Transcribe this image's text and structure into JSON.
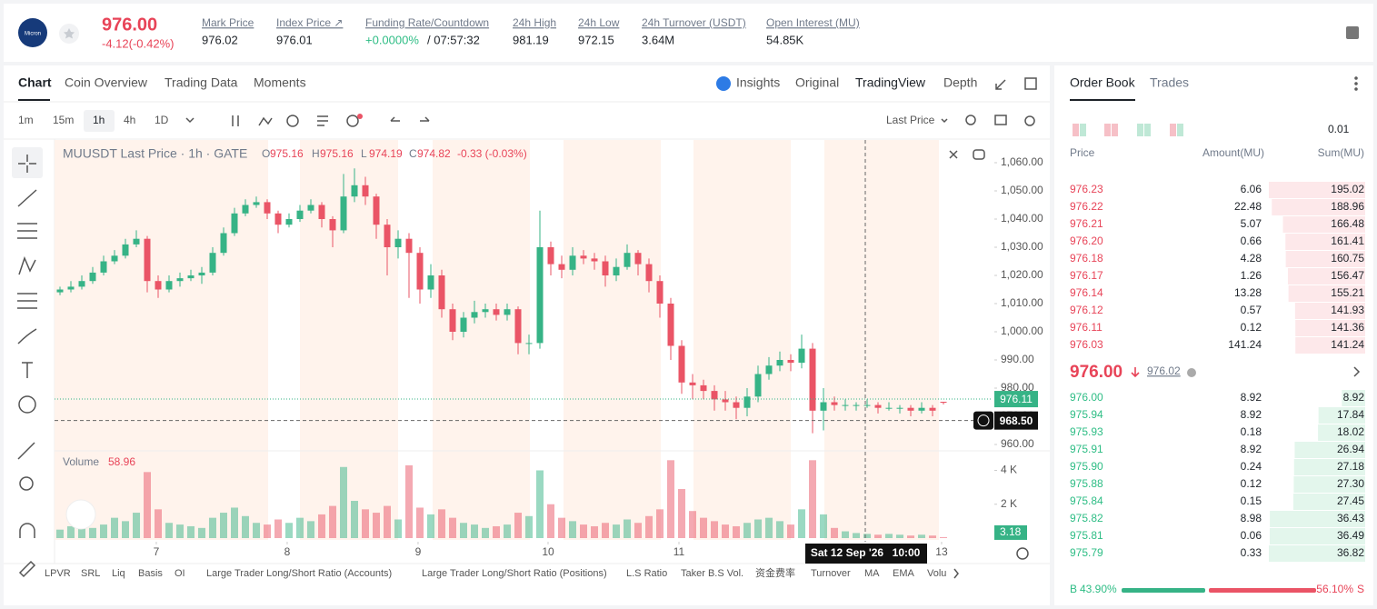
{
  "header": {
    "logo": "Micron",
    "price": "976.00",
    "change": "-4.12(-0.42%)",
    "stats": [
      {
        "label": "Mark Price",
        "value": "976.02"
      },
      {
        "label": "Index Price ↗",
        "value": "976.01"
      },
      {
        "label": "Funding Rate/Countdown",
        "value": "+0.0000%",
        "extra": "/ 07:57:32"
      },
      {
        "label": "24h High",
        "value": "981.19"
      },
      {
        "label": "24h Low",
        "value": "972.15"
      },
      {
        "label": "24h Turnover (USDT)",
        "value": "3.64M"
      },
      {
        "label": "Open Interest (MU)",
        "value": "54.85K"
      }
    ]
  },
  "chart_tabs": [
    "Chart",
    "Coin Overview",
    "Trading Data",
    "Moments"
  ],
  "view_tabs": [
    "Insights",
    "Original",
    "TradingView",
    "Depth"
  ],
  "intervals": [
    "1m",
    "15m",
    "1h",
    "4h",
    "1D"
  ],
  "price_source": "Last Price",
  "indicators": [
    "LPVR",
    "SRL",
    "Liq",
    "Basis",
    "OI",
    "Large Trader Long/Short Ratio (Accounts)",
    "Large Trader Long/Short Ratio (Positions)",
    "L.S Ratio",
    "Taker B.S Vol.",
    "资金费率",
    "Turnover",
    "MA",
    "EMA",
    "Volu"
  ],
  "chart_data": {
    "type": "candlestick",
    "title": "MUUSDT Last Price · 1h · GATE",
    "ohlc_legend": [
      {
        "key": "O",
        "value": "975.16"
      },
      {
        "key": "H",
        "value": "975.16"
      },
      {
        "key": "L",
        "value": "974.19"
      },
      {
        "key": "C",
        "value": "974.82"
      }
    ],
    "change_legend": "-0.33 (-0.03%)",
    "up_color": "#36b386",
    "down_color": "#ea5466",
    "candles": [
      [
        1014,
        1016,
        1013,
        1015
      ],
      [
        1015,
        1018,
        1014,
        1016
      ],
      [
        1016,
        1020,
        1015,
        1018
      ],
      [
        1018,
        1023,
        1017,
        1021
      ],
      [
        1021,
        1027,
        1020,
        1025
      ],
      [
        1025,
        1029,
        1024,
        1027
      ],
      [
        1027,
        1033,
        1026,
        1031
      ],
      [
        1031,
        1036,
        1030,
        1033
      ],
      [
        1033,
        1034,
        1014,
        1018
      ],
      [
        1018,
        1020,
        1012,
        1015
      ],
      [
        1015,
        1020,
        1014,
        1018
      ],
      [
        1018,
        1021,
        1016,
        1019
      ],
      [
        1019,
        1022,
        1018,
        1020
      ],
      [
        1020,
        1023,
        1017,
        1021
      ],
      [
        1021,
        1030,
        1020,
        1028
      ],
      [
        1028,
        1037,
        1027,
        1035
      ],
      [
        1035,
        1044,
        1034,
        1042
      ],
      [
        1042,
        1047,
        1041,
        1045
      ],
      [
        1045,
        1048,
        1044,
        1046
      ],
      [
        1046,
        1047,
        1040,
        1042
      ],
      [
        1042,
        1043,
        1035,
        1038
      ],
      [
        1038,
        1042,
        1037,
        1040
      ],
      [
        1040,
        1045,
        1039,
        1043
      ],
      [
        1043,
        1047,
        1042,
        1045
      ],
      [
        1045,
        1046,
        1037,
        1040
      ],
      [
        1040,
        1041,
        1030,
        1036
      ],
      [
        1036,
        1056,
        1035,
        1048
      ],
      [
        1048,
        1058,
        1046,
        1052
      ],
      [
        1052,
        1055,
        1045,
        1048
      ],
      [
        1048,
        1049,
        1033,
        1038
      ],
      [
        1038,
        1040,
        1020,
        1030
      ],
      [
        1030,
        1036,
        1026,
        1033
      ],
      [
        1033,
        1035,
        1012,
        1028
      ],
      [
        1028,
        1030,
        1010,
        1015
      ],
      [
        1015,
        1024,
        1012,
        1020
      ],
      [
        1020,
        1022,
        1005,
        1008
      ],
      [
        1008,
        1010,
        997,
        1000
      ],
      [
        1000,
        1007,
        998,
        1005
      ],
      [
        1005,
        1011,
        1003,
        1007
      ],
      [
        1007,
        1010,
        1005,
        1008
      ],
      [
        1008,
        1010,
        1004,
        1006
      ],
      [
        1006,
        1010,
        1004,
        1008
      ],
      [
        1008,
        1009,
        992,
        996
      ],
      [
        996,
        999,
        992,
        996
      ],
      [
        996,
        1043,
        994,
        1030
      ],
      [
        1030,
        1032,
        1020,
        1024
      ],
      [
        1024,
        1027,
        1019,
        1022
      ],
      [
        1022,
        1030,
        1020,
        1027
      ],
      [
        1027,
        1029,
        1024,
        1026
      ],
      [
        1026,
        1028,
        1022,
        1025
      ],
      [
        1025,
        1027,
        1016,
        1020
      ],
      [
        1020,
        1026,
        1018,
        1023
      ],
      [
        1023,
        1031,
        1022,
        1028
      ],
      [
        1028,
        1029,
        1020,
        1024
      ],
      [
        1024,
        1026,
        1014,
        1018
      ],
      [
        1018,
        1020,
        1005,
        1010
      ],
      [
        1010,
        1012,
        990,
        995
      ],
      [
        995,
        997,
        978,
        982
      ],
      [
        982,
        985,
        976,
        981
      ],
      [
        981,
        983,
        976,
        979
      ],
      [
        979,
        981,
        972,
        976
      ],
      [
        976,
        979,
        972,
        975
      ],
      [
        975,
        977,
        969,
        973
      ],
      [
        973,
        980,
        970,
        977
      ],
      [
        977,
        988,
        975,
        985
      ],
      [
        985,
        991,
        983,
        988
      ],
      [
        988,
        993,
        986,
        990
      ],
      [
        990,
        992,
        986,
        989
      ],
      [
        989,
        999,
        987,
        994
      ],
      [
        994,
        996,
        964,
        972
      ],
      [
        972,
        980,
        965,
        975
      ],
      [
        975,
        977,
        972,
        974
      ],
      [
        974,
        976,
        972,
        974
      ],
      [
        974,
        975,
        972,
        974
      ],
      [
        974,
        976,
        973,
        974
      ],
      [
        974,
        975,
        971,
        973
      ],
      [
        973,
        975,
        972,
        973
      ],
      [
        973,
        974,
        971,
        973
      ],
      [
        973,
        974,
        970,
        972
      ],
      [
        972,
        975,
        971,
        973
      ],
      [
        973,
        974,
        970,
        972
      ],
      [
        975.16,
        975.16,
        974.19,
        974.82
      ]
    ],
    "volume_label": "Volume",
    "volume_value": 58.96,
    "volume": [
      500,
      700,
      900,
      600,
      800,
      1200,
      1000,
      1500,
      3900,
      1700,
      900,
      800,
      700,
      600,
      1200,
      1500,
      1800,
      1300,
      900,
      800,
      1100,
      900,
      1200,
      1000,
      1400,
      1900,
      4200,
      2200,
      1700,
      1500,
      1900,
      1100,
      4300,
      1800,
      1400,
      1700,
      1200,
      900,
      800,
      600,
      700,
      800,
      1500,
      1300,
      4000,
      2000,
      1200,
      1000,
      800,
      700,
      900,
      800,
      1100,
      900,
      1300,
      1700,
      4600,
      2900,
      1600,
      1200,
      1000,
      800,
      700,
      900,
      1100,
      1200,
      1000,
      800,
      1700,
      4600,
      1400,
      600,
      400,
      300,
      250,
      200,
      250,
      200,
      150,
      200,
      150,
      58.96
    ],
    "xlim": [
      0,
      86
    ],
    "xticks": [
      {
        "value": 9.33,
        "label": "7"
      },
      {
        "value": 21.33,
        "label": "8"
      },
      {
        "value": 33.33,
        "label": "9"
      },
      {
        "value": 45.25,
        "label": "10"
      },
      {
        "value": 57.25,
        "label": "11"
      },
      {
        "value": 81.33,
        "label": "13"
      }
    ],
    "ylim": [
      957,
      1065
    ],
    "yticks": [
      {
        "value": 960,
        "label": "960.00"
      },
      {
        "value": 970,
        "label": "970.00"
      },
      {
        "value": 980,
        "label": "980.00"
      },
      {
        "value": 990,
        "label": "990.00"
      },
      {
        "value": 1000,
        "label": "1,000.00"
      },
      {
        "value": 1010,
        "label": "1,010.00"
      },
      {
        "value": 1020,
        "label": "1,020.00"
      },
      {
        "value": 1030,
        "label": "1,030.00"
      },
      {
        "value": 1040,
        "label": "1,040.00"
      },
      {
        "value": 1050,
        "label": "1,050.00"
      },
      {
        "value": 1060,
        "label": "1,060.00"
      }
    ],
    "volume_ylim": [
      0,
      5100
    ],
    "volume_yticks": [
      {
        "value": 2000,
        "label": "2 K"
      },
      {
        "value": 4000,
        "label": "4 K"
      }
    ],
    "last_price_line": 976.11,
    "crosshair_price": {
      "value": 968.5,
      "label": "968.50"
    },
    "volume_tag": 3.18,
    "crosshair_date": "Sat 12 Sep '26",
    "crosshair_time": "10:00"
  },
  "order_book": {
    "tabs": [
      "Order Book",
      "Trades"
    ],
    "precision": "0.01",
    "columns": [
      "Price",
      "Amount(MU)",
      "Sum(MU)"
    ],
    "asks": [
      [
        "976.23",
        "6.06",
        "195.02"
      ],
      [
        "976.22",
        "22.48",
        "188.96"
      ],
      [
        "976.21",
        "5.07",
        "166.48"
      ],
      [
        "976.20",
        "0.66",
        "161.41"
      ],
      [
        "976.18",
        "4.28",
        "160.75"
      ],
      [
        "976.17",
        "1.26",
        "156.47"
      ],
      [
        "976.14",
        "13.28",
        "155.21"
      ],
      [
        "976.12",
        "0.57",
        "141.93"
      ],
      [
        "976.11",
        "0.12",
        "141.36"
      ],
      [
        "976.03",
        "141.24",
        "141.24"
      ]
    ],
    "mid_price": "976.00",
    "mid_mark": "976.02",
    "bids": [
      [
        "976.00",
        "8.92",
        "8.92"
      ],
      [
        "975.94",
        "8.92",
        "17.84"
      ],
      [
        "975.93",
        "0.18",
        "18.02"
      ],
      [
        "975.91",
        "8.92",
        "26.94"
      ],
      [
        "975.90",
        "0.24",
        "27.18"
      ],
      [
        "975.88",
        "0.12",
        "27.30"
      ],
      [
        "975.84",
        "0.15",
        "27.45"
      ],
      [
        "975.82",
        "8.98",
        "36.43"
      ],
      [
        "975.81",
        "0.06",
        "36.49"
      ],
      [
        "975.79",
        "0.33",
        "36.82"
      ]
    ],
    "buy_label": "B",
    "buy_ratio": "43.90%",
    "sell_ratio": "56.10%",
    "sell_label": "S"
  }
}
